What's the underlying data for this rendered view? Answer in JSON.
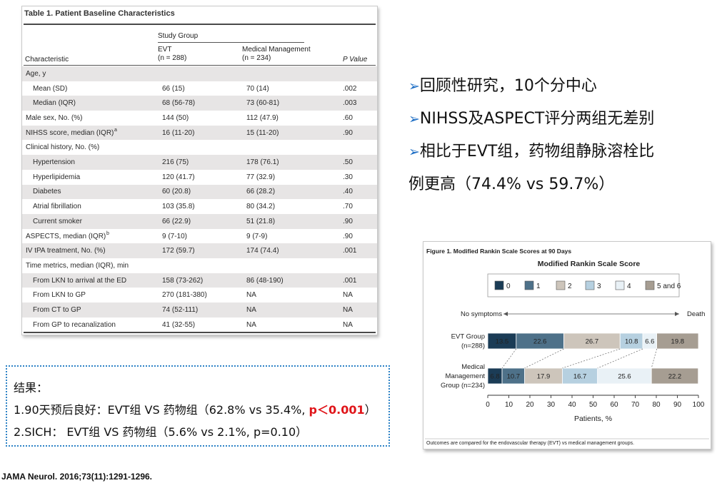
{
  "table": {
    "title": "Table 1. Patient Baseline Characteristics",
    "study_group_label": "Study Group",
    "col_characteristic": "Characteristic",
    "col_evt": "EVT",
    "col_evt_n": "(n = 288)",
    "col_med": "Medical Management",
    "col_med_n": "(n = 234)",
    "col_p": "P Value",
    "rows": [
      {
        "label": "Age, y",
        "evt": "",
        "med": "",
        "p": "",
        "indent": false,
        "shade": true
      },
      {
        "label": "Mean (SD)",
        "evt": "66 (15)",
        "med": "70 (14)",
        "p": ".002",
        "indent": true,
        "shade": false
      },
      {
        "label": "Median (IQR)",
        "evt": "68 (56-78)",
        "med": "73 (60-81)",
        "p": ".003",
        "indent": true,
        "shade": true
      },
      {
        "label": "Male sex, No. (%)",
        "evt": "144 (50)",
        "med": "112 (47.9)",
        "p": ".60",
        "indent": false,
        "shade": false
      },
      {
        "label": "NIHSS score, median (IQR)",
        "sup": "a",
        "evt": "16 (11-20)",
        "med": "15 (11-20)",
        "p": ".90",
        "indent": false,
        "shade": true
      },
      {
        "label": "Clinical history, No. (%)",
        "evt": "",
        "med": "",
        "p": "",
        "indent": false,
        "shade": false
      },
      {
        "label": "Hypertension",
        "evt": "216 (75)",
        "med": "178 (76.1)",
        "p": ".50",
        "indent": true,
        "shade": true
      },
      {
        "label": "Hyperlipidemia",
        "evt": "120 (41.7)",
        "med": "77 (32.9)",
        "p": ".30",
        "indent": true,
        "shade": false
      },
      {
        "label": "Diabetes",
        "evt": "60 (20.8)",
        "med": "66 (28.2)",
        "p": ".40",
        "indent": true,
        "shade": true
      },
      {
        "label": "Atrial fibrillation",
        "evt": "103 (35.8)",
        "med": "80 (34.2)",
        "p": ".70",
        "indent": true,
        "shade": false
      },
      {
        "label": "Current smoker",
        "evt": "66 (22.9)",
        "med": "51 (21.8)",
        "p": ".90",
        "indent": true,
        "shade": true
      },
      {
        "label": "ASPECTS, median (IQR)",
        "sup": "b",
        "evt": "9 (7-10)",
        "med": "9 (7-9)",
        "p": ".90",
        "indent": false,
        "shade": false
      },
      {
        "label": "IV tPA treatment, No. (%)",
        "evt": "172 (59.7)",
        "med": "174 (74.4)",
        "p": ".001",
        "indent": false,
        "shade": true
      },
      {
        "label": "Time metrics, median (IQR), min",
        "evt": "",
        "med": "",
        "p": "",
        "indent": false,
        "shade": false
      },
      {
        "label": "From LKN to arrival at the ED",
        "evt": "158 (73-262)",
        "med": "86 (48-190)",
        "p": ".001",
        "indent": true,
        "shade": true
      },
      {
        "label": "From LKN to GP",
        "evt": "270 (181-380)",
        "med": "NA",
        "p": "NA",
        "indent": true,
        "shade": false
      },
      {
        "label": "From CT to GP",
        "evt": "74 (52-111)",
        "med": "NA",
        "p": "NA",
        "indent": true,
        "shade": true
      },
      {
        "label": "From GP to recanalization",
        "evt": "41 (32-55)",
        "med": "NA",
        "p": "NA",
        "indent": true,
        "shade": false
      }
    ]
  },
  "bullets": {
    "arrow_glyph": "➢",
    "line1": "回顾性研究，10个分中心",
    "line2": "NIHSS及ASPECT评分两组无差别",
    "line3": "相比于EVT组，药物组静脉溶栓比",
    "line4": "例更高（74.4% vs 59.7%）",
    "arrow_color": "#1f6fc5"
  },
  "results": {
    "heading": "结果：",
    "item1_prefix": "1.90天预后良好：EVT组 VS 药物组（62.8% vs 35.4%, ",
    "item1_highlight": "p＜0.001",
    "item1_suffix": "）",
    "item2": "2.SICH： EVT组 VS 药物组（5.6% vs 2.1%, p=0.10）",
    "highlight_color": "#e0151a",
    "border_color": "#2e83c6"
  },
  "citation": "JAMA Neurol. 2016;73(11):1291-1296.",
  "figure": {
    "title": "Figure 1. Modified Rankin Scale Scores at 90 Days",
    "footnote": "Outcomes are compared for the endovascular therapy (EVT) vs medical management groups.",
    "no_symptoms": "No symptoms",
    "death": "Death"
  },
  "chart_data": {
    "type": "bar",
    "orientation": "horizontal-stacked",
    "title": "Modified Rankin Scale Score",
    "xlabel": "Patients, %",
    "xlim": [
      0,
      100
    ],
    "xticks": [
      0,
      10,
      20,
      30,
      40,
      50,
      60,
      70,
      80,
      90,
      100
    ],
    "legend": [
      {
        "label": "0",
        "color": "#1b3c56"
      },
      {
        "label": "1",
        "color": "#4e7189"
      },
      {
        "label": "2",
        "color": "#cdc5bb"
      },
      {
        "label": "3",
        "color": "#b6d0e0"
      },
      {
        "label": "4",
        "color": "#e9f1f6"
      },
      {
        "label": "5 and 6",
        "color": "#a69d92"
      }
    ],
    "categories": [
      {
        "name_lines": [
          "EVT Group",
          "(n=288)"
        ],
        "values": [
          13.5,
          22.6,
          26.7,
          10.8,
          6.6,
          19.8
        ]
      },
      {
        "name_lines": [
          "Medical",
          "Management",
          "Group (n=234)"
        ],
        "values": [
          6.8,
          10.7,
          17.9,
          16.7,
          25.6,
          22.2
        ]
      }
    ]
  }
}
